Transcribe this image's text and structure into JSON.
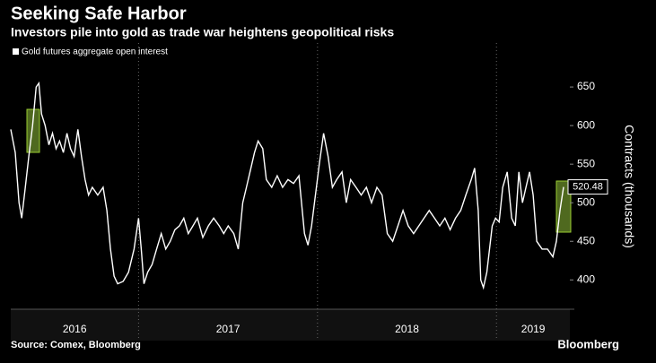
{
  "chart_data": {
    "type": "line",
    "title": "Seeking Safe Harbor",
    "subtitle": "Investors pile into gold as trade war heightens geopolitical risks",
    "y_axis_label": "Contracts (thousands)",
    "source": "Source: Comex, Bloomberg",
    "brand": "Bloomberg",
    "x_labels": [
      "2016",
      "2017",
      "2018",
      "2019"
    ],
    "xlim": [
      2016.286,
      2019.41
    ],
    "xticks": [
      2017,
      2018,
      2019
    ],
    "ylim": [
      362,
      707
    ],
    "yticks": [
      400,
      450,
      500,
      550,
      600,
      650
    ],
    "series": [
      {
        "name": "Gold futures aggregate open interest",
        "color": "#ffffff",
        "x": [
          2016.286,
          2016.311,
          2016.332,
          2016.347,
          2016.367,
          2016.387,
          2016.408,
          2016.428,
          2016.443,
          2016.458,
          2016.478,
          2016.499,
          2016.519,
          2016.539,
          2016.559,
          2016.58,
          2016.6,
          2016.62,
          2016.64,
          2016.661,
          2016.681,
          2016.701,
          2016.721,
          2016.742,
          2016.772,
          2016.802,
          2016.823,
          2016.843,
          2016.863,
          2016.883,
          2016.914,
          2016.944,
          2016.975,
          2017.0,
          2017.015,
          2017.03,
          2017.051,
          2017.076,
          2017.101,
          2017.127,
          2017.152,
          2017.177,
          2017.203,
          2017.228,
          2017.253,
          2017.278,
          2017.304,
          2017.329,
          2017.359,
          2017.39,
          2017.42,
          2017.451,
          2017.476,
          2017.501,
          2017.532,
          2017.557,
          2017.582,
          2017.603,
          2017.623,
          2017.648,
          2017.668,
          2017.694,
          2017.714,
          2017.744,
          2017.775,
          2017.805,
          2017.835,
          2017.866,
          2017.896,
          2017.927,
          2017.947,
          2017.967,
          2018.01,
          2018.034,
          2018.059,
          2018.083,
          2018.107,
          2018.137,
          2018.161,
          2018.185,
          2018.215,
          2018.244,
          2018.273,
          2018.302,
          2018.332,
          2018.361,
          2018.39,
          2018.42,
          2018.449,
          2018.478,
          2018.507,
          2018.537,
          2018.566,
          2018.595,
          2018.624,
          2018.654,
          2018.683,
          2018.712,
          2018.741,
          2018.771,
          2018.8,
          2018.829,
          2018.859,
          2018.878,
          2018.898,
          2018.912,
          2018.927,
          2018.946,
          2018.976,
          2018.995,
          2019.015,
          2019.035,
          2019.06,
          2019.085,
          2019.105,
          2019.125,
          2019.145,
          2019.165,
          2019.185,
          2019.205,
          2019.225,
          2019.255,
          2019.285,
          2019.315,
          2019.335,
          2019.355,
          2019.375
        ],
        "values": [
          595,
          565,
          500,
          480,
          520,
          560,
          600,
          650,
          655,
          615,
          600,
          575,
          590,
          570,
          580,
          565,
          590,
          570,
          560,
          595,
          560,
          530,
          510,
          520,
          510,
          520,
          490,
          440,
          405,
          395,
          398,
          410,
          440,
          480,
          440,
          395,
          410,
          420,
          440,
          460,
          440,
          450,
          465,
          470,
          480,
          460,
          470,
          480,
          455,
          470,
          480,
          470,
          460,
          470,
          460,
          440,
          500,
          520,
          540,
          565,
          580,
          570,
          530,
          520,
          535,
          520,
          530,
          525,
          535,
          460,
          445,
          470,
          550,
          590,
          560,
          520,
          530,
          540,
          500,
          530,
          520,
          510,
          520,
          500,
          520,
          510,
          460,
          450,
          470,
          490,
          470,
          460,
          470,
          480,
          490,
          480,
          470,
          480,
          465,
          480,
          490,
          510,
          530,
          545,
          490,
          400,
          390,
          410,
          470,
          480,
          475,
          520,
          540,
          480,
          470,
          540,
          500,
          520,
          540,
          510,
          450,
          440,
          440,
          430,
          450,
          490,
          520.48
        ]
      }
    ]
  }
}
